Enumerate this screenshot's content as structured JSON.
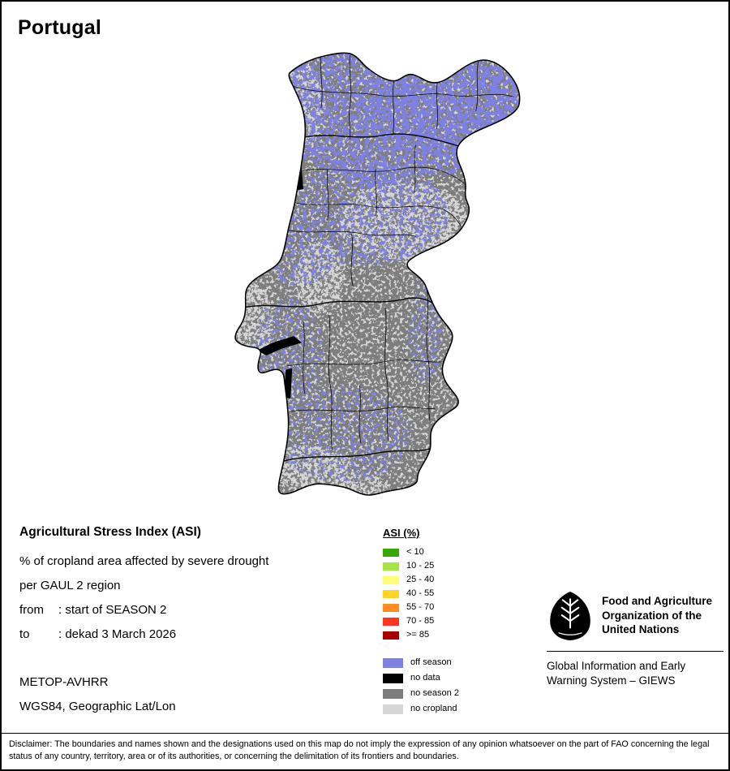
{
  "page": {
    "title": "Portugal"
  },
  "info": {
    "heading": "Agricultural Stress Index (ASI)",
    "line1": "% of cropland area affected by severe drought",
    "line2": "per GAUL 2 region",
    "from_label": "from",
    "from_value": ": start of SEASON 2",
    "to_label": "to",
    "to_value": ": dekad 3 March 2026",
    "sensor": "METOP-AVHRR",
    "projection": "WGS84, Geographic Lat/Lon"
  },
  "legend": {
    "heading": "ASI (%)",
    "asi_classes": [
      {
        "label": "< 10",
        "color": "#38a800"
      },
      {
        "label": "10 - 25",
        "color": "#a4e641"
      },
      {
        "label": "25 - 40",
        "color": "#ffff73"
      },
      {
        "label": "40 - 55",
        "color": "#ffd428"
      },
      {
        "label": "55 - 70",
        "color": "#ff8c1e"
      },
      {
        "label": "70 - 85",
        "color": "#ff3421"
      },
      {
        "label": ">= 85",
        "color": "#a80000"
      }
    ],
    "coverage_classes": [
      {
        "label": "off season",
        "color": "#7e81e3"
      },
      {
        "label": "no data",
        "color": "#000000"
      },
      {
        "label": "no season 2",
        "color": "#7d7d7d"
      },
      {
        "label": "no cropland",
        "color": "#d6d6d6"
      }
    ]
  },
  "map_colors": {
    "no_season_2": "#7d7d7d",
    "off_season": "#7e81e3",
    "no_cropland": "#d6d6d6",
    "no_data": "#000000",
    "boundary": "#000000"
  },
  "org": {
    "fao_name": "Food and Agriculture Organization of the United Nations",
    "giews_name": "Global Information and Early Warning System – GIEWS"
  },
  "disclaimer": "Disclaimer: The boundaries and names shown and the designations used on this map do not imply the expression of any opinion whatsoever on the part of FAO concerning the legal status of any country, territory, area or of its authorities, or concerning the delimitation of its frontiers and boundaries."
}
